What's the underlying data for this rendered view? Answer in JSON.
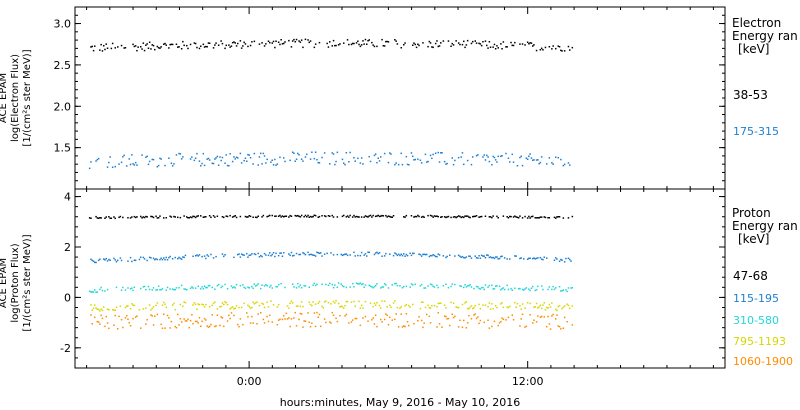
{
  "chart_data": [
    {
      "type": "scatter",
      "ylabel": [
        "ACE EPAM",
        "log(Electron Flux)",
        "[1/(cm²s ster MeV)]"
      ],
      "ylim": [
        1.0,
        3.2
      ],
      "yticks": [
        "1.5",
        "2.0",
        "2.5",
        "3.0"
      ],
      "ytick_values": [
        1.5,
        2.0,
        2.5,
        3.0
      ],
      "legend": {
        "title_lines": [
          "Electron",
          "Energy ran"
        ],
        "unit": "[keV]"
      },
      "series": [
        {
          "name": "38-53",
          "color": "#000000",
          "mean": 2.72,
          "amp": 0.05,
          "noise": 0.05
        },
        {
          "name": "175-315",
          "color": "#1e7fd0",
          "mean": 1.34,
          "amp": 0.04,
          "noise": 0.08
        }
      ]
    },
    {
      "type": "scatter",
      "ylabel": [
        "ACE EPAM",
        "log(Proton Flux)",
        "[1/(cm²s ster MeV)]"
      ],
      "ylim": [
        -2.8,
        4.3
      ],
      "yticks": [
        "-2",
        "0",
        "2",
        "4"
      ],
      "ytick_values": [
        -2,
        0,
        2,
        4
      ],
      "legend": {
        "title_lines": [
          "Proton",
          "Energy ran"
        ],
        "unit": "[keV]"
      },
      "series": [
        {
          "name": "47-68",
          "color": "#000000",
          "mean": 3.2,
          "amp": 0.05,
          "noise": 0.04
        },
        {
          "name": "115-195",
          "color": "#1e7fd0",
          "mean": 1.5,
          "amp": 0.25,
          "noise": 0.08
        },
        {
          "name": "310-580",
          "color": "#22d6d6",
          "mean": 0.35,
          "amp": 0.15,
          "noise": 0.1
        },
        {
          "name": "795-1193",
          "color": "#d6d600",
          "mean": -0.35,
          "amp": 0.1,
          "noise": 0.15
        },
        {
          "name": "1060-1900",
          "color": "#ff8c00",
          "mean": -0.95,
          "amp": 0.1,
          "noise": 0.3
        }
      ]
    }
  ],
  "x_axis": {
    "label": "hours:minutes, May  9, 2016 - May 10, 2016",
    "ticks": [
      "0:00",
      "12:00"
    ],
    "tick_hours": [
      0,
      12
    ],
    "range_hours": [
      -7.5,
      20.5
    ],
    "data_end_hours": 13.9
  }
}
